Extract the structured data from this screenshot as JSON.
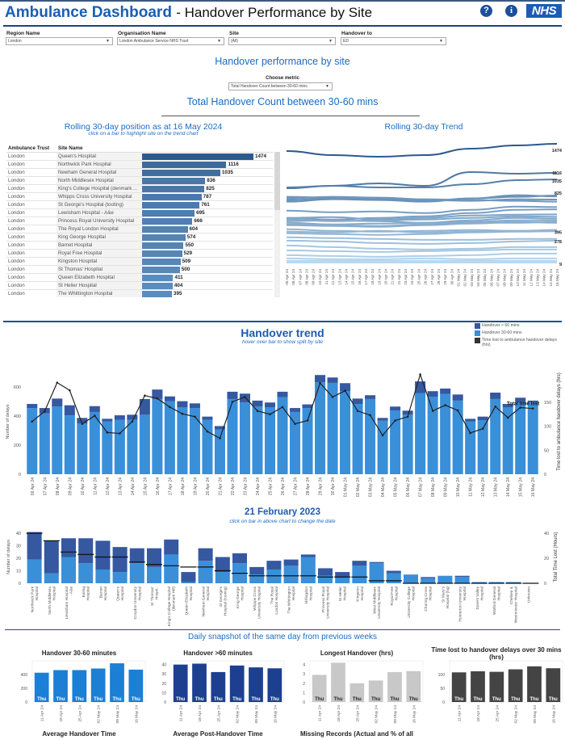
{
  "header": {
    "title": "Ambulance Dashboard",
    "subtitle": "- Handover Performance by Site",
    "help_icon": "question-circle-icon",
    "info_icon": "info-circle-icon",
    "logo_text": "NHS",
    "brand_color": "#1d5cb4"
  },
  "filters": [
    {
      "label": "Region Name",
      "value": "London"
    },
    {
      "label": "Organisation Name",
      "value": "London Ambulance Service NHS Trust"
    },
    {
      "label": "Site",
      "value": "(All)"
    },
    {
      "label": "Handover to",
      "value": "ED"
    }
  ],
  "section1": {
    "heading": "Handover performance by site",
    "metric_label": "Choose metric",
    "metric_value": "Total Handover Count between 30-60 mins",
    "metric_title": "Total Handover Count between 30-60 mins"
  },
  "ranking": {
    "title": "Rolling 30-day position as at 16 May 2024",
    "subtitle": "click on a bar to highlight site on the trend chart",
    "col_trust": "Ambulance Trust",
    "col_site": "Site Name",
    "max": 1474,
    "rows": [
      {
        "trust": "London",
        "site": "Queen's Hospital",
        "value": 1474
      },
      {
        "trust": "London",
        "site": "Northwick Park Hospital",
        "value": 1116
      },
      {
        "trust": "London",
        "site": "Newham General Hospital",
        "value": 1035
      },
      {
        "trust": "London",
        "site": "North Middlesex Hospital",
        "value": 836
      },
      {
        "trust": "London",
        "site": "King's College Hospital (denmark ...",
        "value": 825
      },
      {
        "trust": "London",
        "site": "Whipps Cross University Hospital",
        "value": 787
      },
      {
        "trust": "London",
        "site": "St George's Hospital (tooting)",
        "value": 761
      },
      {
        "trust": "London",
        "site": "Lewisham Hospital - A&e",
        "value": 695
      },
      {
        "trust": "London",
        "site": "Princess Royal University Hospital",
        "value": 666
      },
      {
        "trust": "London",
        "site": "The Royal London Hospital",
        "value": 604
      },
      {
        "trust": "London",
        "site": "King George Hospital",
        "value": 574
      },
      {
        "trust": "London",
        "site": "Barnet Hospital",
        "value": 550
      },
      {
        "trust": "London",
        "site": "Royal Free Hospital",
        "value": 529
      },
      {
        "trust": "London",
        "site": "Kingston Hospital",
        "value": 509
      },
      {
        "trust": "London",
        "site": "St Thomas' Hospital",
        "value": 500
      },
      {
        "trust": "London",
        "site": "Queen Elizabeth Hospital",
        "value": 411
      },
      {
        "trust": "London",
        "site": "St Helier Hospital",
        "value": 404
      },
      {
        "trust": "London",
        "site": "The Whittington Hospital",
        "value": 395
      }
    ]
  },
  "chart_data": [
    {
      "id": "rolling-trend",
      "type": "line",
      "title": "Rolling 30-day Trend",
      "axis_dates": [
        "05 Apr 24",
        "06 Apr 24",
        "07 Apr 24",
        "08 Apr 24",
        "09 Apr 24",
        "10 Apr 24",
        "11 Apr 24",
        "12 Apr 24",
        "13 Apr 24",
        "14 Apr 24",
        "15 Apr 24",
        "16 Apr 24",
        "17 Apr 24",
        "18 Apr 24",
        "19 Apr 24",
        "20 Apr 24",
        "21 Apr 24",
        "22 Apr 24",
        "23 Apr 24",
        "24 Apr 24",
        "25 Apr 24",
        "26 Apr 24",
        "27 Apr 24",
        "28 Apr 24",
        "29 Apr 24",
        "30 Apr 24",
        "01 May 24",
        "02 May 24",
        "03 May 24",
        "04 May 24",
        "05 May 24",
        "06 May 24",
        "07 May 24",
        "08 May 24",
        "09 May 24",
        "10 May 24",
        "11 May 24",
        "12 May 24",
        "13 May 24",
        "14 May 24",
        "15 May 24",
        "16 May 24"
      ],
      "x": [
        "05 Apr 24",
        "12 Apr 24",
        "19 Apr 24",
        "26 Apr 24",
        "03 May 24",
        "10 May 24",
        "16 May 24"
      ],
      "end_labels": [
        "1474",
        "1116",
        "1035",
        "825",
        "395",
        "278",
        "9"
      ],
      "ylim": [
        0,
        1560
      ],
      "series": [
        [
          1385,
          1335,
          1315,
          1335,
          1415,
          1455,
          1474
        ],
        [
          926,
          956,
          986,
          956,
          1126,
          1106,
          1116
        ],
        [
          936,
          956,
          936,
          936,
          976,
          1026,
          1035
        ],
        [
          780,
          800,
          790,
          770,
          800,
          820,
          836
        ],
        [
          760,
          790,
          780,
          760,
          800,
          840,
          825
        ],
        [
          820,
          810,
          800,
          780,
          770,
          790,
          787
        ],
        [
          800,
          820,
          810,
          790,
          780,
          770,
          761
        ],
        [
          650,
          630,
          640,
          620,
          660,
          700,
          695
        ],
        [
          560,
          540,
          560,
          580,
          620,
          660,
          666
        ],
        [
          560,
          570,
          540,
          560,
          590,
          600,
          604
        ],
        [
          540,
          520,
          530,
          540,
          560,
          580,
          574
        ],
        [
          520,
          530,
          520,
          500,
          530,
          560,
          550
        ],
        [
          500,
          480,
          490,
          500,
          510,
          530,
          529
        ],
        [
          480,
          470,
          460,
          480,
          500,
          500,
          509
        ],
        [
          470,
          460,
          450,
          470,
          490,
          510,
          500
        ],
        [
          420,
          400,
          390,
          400,
          410,
          400,
          411
        ],
        [
          390,
          380,
          400,
          380,
          390,
          400,
          404
        ],
        [
          370,
          360,
          350,
          360,
          380,
          390,
          395
        ],
        [
          320,
          310,
          300,
          290,
          290,
          300,
          300
        ],
        [
          280,
          270,
          250,
          240,
          250,
          270,
          278
        ],
        [
          220,
          200,
          180,
          170,
          180,
          200,
          200
        ],
        [
          160,
          150,
          140,
          150,
          160,
          170,
          170
        ],
        [
          100,
          90,
          80,
          90,
          100,
          120,
          120
        ],
        [
          60,
          50,
          50,
          60,
          50,
          60,
          60
        ],
        [
          30,
          30,
          30,
          30,
          30,
          30,
          30
        ],
        [
          9,
          9,
          9,
          9,
          9,
          9,
          9
        ]
      ]
    },
    {
      "id": "handover-trend",
      "type": "bar",
      "stacked": true,
      "title": "Handover trend",
      "subtitle": "hover over bar to show split by site",
      "ylabel": "Number of delays",
      "y2label": "Time lost to ambulance handover delays (hrs)",
      "ylim": [
        0,
        722
      ],
      "y2lim": [
        0,
        219
      ],
      "yticks": [
        0,
        200,
        400,
        600
      ],
      "y2ticks": [
        0,
        50,
        100,
        150
      ],
      "line_label": "Total time lost",
      "categories": [
        "06 Apr 24",
        "07 Apr 24",
        "08 Apr 24",
        "09 Apr 24",
        "10 Apr 24",
        "11 Apr 24",
        "12 Apr 24",
        "13 Apr 24",
        "14 Apr 24",
        "15 Apr 24",
        "16 Apr 24",
        "17 Apr 24",
        "18 Apr 24",
        "19 Apr 24",
        "20 Apr 24",
        "21 Apr 24",
        "22 Apr 24",
        "23 Apr 24",
        "24 Apr 24",
        "25 Apr 24",
        "26 Apr 24",
        "27 Apr 24",
        "28 Apr 24",
        "29 Apr 24",
        "30 Apr 24",
        "01 May 24",
        "02 May 24",
        "03 May 24",
        "04 May 24",
        "05 May 24",
        "06 May 24",
        "07 May 24",
        "08 May 24",
        "09 May 24",
        "10 May 24",
        "11 May 24",
        "12 May 24",
        "13 May 24",
        "14 May 24",
        "15 May 24",
        "16 May 24"
      ],
      "series": [
        {
          "name": "Handover 30-60 mins",
          "color": "#3a8fd9",
          "values": [
            455,
            418,
            465,
            405,
            348,
            428,
            362,
            375,
            375,
            409,
            517,
            502,
            459,
            455,
            375,
            307,
            517,
            493,
            465,
            459,
            530,
            428,
            455,
            632,
            628,
            572,
            483,
            517,
            368,
            437,
            409,
            558,
            533,
            552,
            506,
            362,
            372,
            517,
            461,
            493,
            493
          ]
        },
        {
          "name": "Handover > 60 mins",
          "color": "#3558a0",
          "values": [
            28,
            37,
            55,
            69,
            39,
            40,
            19,
            30,
            34,
            108,
            65,
            33,
            43,
            32,
            21,
            24,
            50,
            61,
            41,
            34,
            37,
            27,
            25,
            50,
            37,
            54,
            37,
            26,
            19,
            28,
            28,
            80,
            38,
            37,
            42,
            19,
            24,
            44,
            22,
            33,
            13
          ]
        },
        {
          "name": "Time lost to ambulance handover delays (hrs)",
          "color": "#222222",
          "axis": "right",
          "values": [
            110,
            131,
            191,
            175,
            105,
            122,
            87,
            85,
            110,
            164,
            158,
            140,
            126,
            120,
            89,
            75,
            151,
            161,
            132,
            125,
            140,
            105,
            112,
            190,
            161,
            174,
            132,
            123,
            81,
            112,
            120,
            208,
            132,
            144,
            133,
            86,
            95,
            141,
            118,
            139,
            137
          ]
        }
      ]
    },
    {
      "id": "day-by-site",
      "type": "bar",
      "stacked": true,
      "title": "21 February 2023",
      "subtitle": "click on bar in above chart to change the date",
      "ylabel": "Number of delays",
      "y2label": "Total Time Lost (Hours)",
      "ylim": [
        0,
        42
      ],
      "y2lim": [
        0,
        42
      ],
      "yticks": [
        0,
        10,
        20,
        30,
        40
      ],
      "y2ticks": [
        0,
        20,
        40
      ],
      "categories": [
        "Northwick Park Hospital",
        "North Middlesex Hospital",
        "Lewisham Hospital - A&e",
        "Ealing Hospital",
        "Barnet Hospital",
        "Queen's Hospital",
        "Croydon University Hospital",
        "St Thomas' Hospit..",
        "King's College Hospital (denmark Hill)",
        "Queen Elizabeth Hospital",
        "Newham General Hospital",
        "St George's Hospital (tooting)",
        "King George Hospital",
        "Whipps Cross University Hospital",
        "The Royal London Hospital",
        "The Whittington Hospital",
        "Hillingdon Hospital",
        "Princess Royal University Hospital",
        "St Helier Hospital",
        "Kingston Hospital",
        "West Middlesex University Hospital",
        "Royal Free Hospital",
        "University College Hospital",
        "Charing Cross Hospital",
        "St Mary's Hospital (hq)",
        "Homerton University Hospital",
        "Darent Valley Hospital",
        "Watford General Hospital",
        "Chelsea & Westminster Hospital",
        "Unknown"
      ],
      "series": [
        {
          "name": "Handover 30-60 mins",
          "color": "#3a8fd9",
          "values": [
            19,
            8,
            21,
            16,
            11,
            9,
            16,
            13,
            23,
            1,
            18,
            9,
            16,
            7,
            11,
            14,
            21,
            6,
            5,
            14,
            16,
            8,
            7,
            4,
            6,
            5,
            1,
            1,
            1,
            0
          ]
        },
        {
          "name": "Handover > 60 mins",
          "color": "#3558a0",
          "values": [
            22,
            26,
            15,
            20,
            23,
            20,
            12,
            15,
            12,
            8,
            10,
            12,
            8,
            6,
            7,
            5,
            2,
            6,
            4,
            4,
            1,
            2,
            0,
            1,
            0,
            1,
            0,
            0,
            0,
            0
          ]
        },
        {
          "name": "Total Time Lost (Hours)",
          "color": "#111111",
          "axis": "right",
          "values": [
            40,
            34,
            25,
            23,
            21,
            21,
            17,
            15,
            14,
            13,
            13,
            10,
            8,
            6,
            6,
            6,
            6,
            5,
            5,
            5,
            2,
            2,
            0,
            0,
            0,
            0,
            0,
            0,
            0,
            0
          ]
        }
      ]
    },
    {
      "id": "snap-30-60",
      "type": "bar",
      "title": "Handover 30-60 minutes",
      "footer": "Average Handover Time",
      "color": "#1b7fd6",
      "ylim": [
        0,
        600
      ],
      "yticks": [
        0,
        200,
        400
      ],
      "bar_label": "Thu",
      "categories": [
        "11 Apr 24",
        "18 Apr 24",
        "25 Apr 24",
        "02 May 24",
        "09 May 24",
        "16 May 24"
      ],
      "values": [
        427,
        465,
        465,
        488,
        564,
        472
      ]
    },
    {
      "id": "snap-60",
      "type": "bar",
      "title": "Handover >60 minutes",
      "footer": "Average Post-Handover Time",
      "color": "#1d3f8f",
      "ylim": [
        0,
        44
      ],
      "yticks": [
        0,
        10,
        20,
        30,
        40
      ],
      "bar_label": "Thu",
      "categories": [
        "11 Apr 24",
        "18 Apr 24",
        "25 Apr 24",
        "02 May 24",
        "09 May 24",
        "16 May 24"
      ],
      "values": [
        40,
        41,
        32,
        39,
        37,
        36
      ]
    },
    {
      "id": "snap-longest",
      "type": "bar",
      "title": "Longest Handover (hrs)",
      "footer": "Missing Records (Actual and % of all",
      "color": "#c8c8c8",
      "ylim": [
        0,
        4.4
      ],
      "yticks": [
        0,
        1,
        2,
        3,
        4
      ],
      "bar_label": "Thu",
      "categories": [
        "11 Apr 24",
        "18 Apr 24",
        "25 Apr 24",
        "02 May 24",
        "09 May 24",
        "16 May 24"
      ],
      "values": [
        2.9,
        4.2,
        2.0,
        2.3,
        3.2,
        3.3
      ]
    },
    {
      "id": "snap-timelost",
      "type": "bar",
      "title": "Time lost to handover delays over 30 mins (hrs)",
      "footer": "",
      "color": "#444444",
      "ylim": [
        0,
        150
      ],
      "yticks": [
        0,
        50,
        100
      ],
      "bar_label": "Thu",
      "categories": [
        "11 Apr 24",
        "18 Apr 24",
        "25 Apr 24",
        "02 May 24",
        "09 May 24",
        "16 May 24"
      ],
      "values": [
        108,
        112,
        110,
        119,
        130,
        123
      ]
    }
  ],
  "snapshot": {
    "heading": "Daily snapshot of the same day from previous weeks"
  }
}
